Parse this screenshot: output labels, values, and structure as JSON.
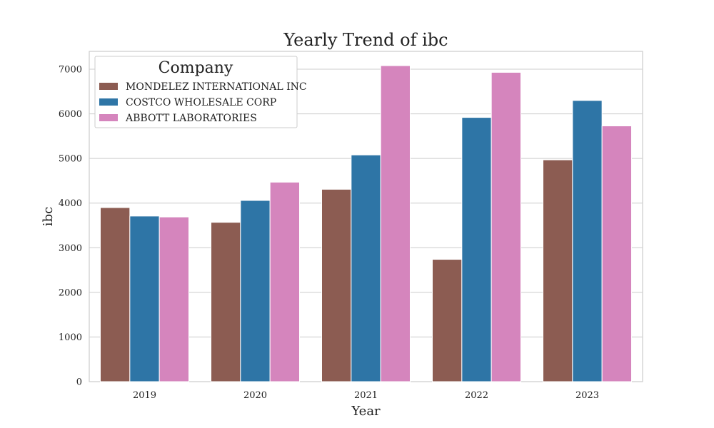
{
  "chart_data": {
    "type": "bar",
    "title": "Yearly Trend of ibc",
    "xlabel": "Year",
    "ylabel": "ibc",
    "categories": [
      "2019",
      "2020",
      "2021",
      "2022",
      "2023"
    ],
    "series": [
      {
        "name": "MONDELEZ INTERNATIONAL INC",
        "color": "#8c5c52",
        "values": [
          3900,
          3570,
          4310,
          2740,
          4970
        ]
      },
      {
        "name": "COSTCO WHOLESALE CORP",
        "color": "#2e75a6",
        "values": [
          3710,
          4060,
          5080,
          5920,
          6300
        ]
      },
      {
        "name": "ABBOTT LABORATORIES",
        "color": "#d585bd",
        "values": [
          3690,
          4470,
          7080,
          6930,
          5730
        ]
      }
    ],
    "ylim": [
      0,
      7400
    ],
    "yticks": [
      0,
      1000,
      2000,
      3000,
      4000,
      5000,
      6000,
      7000
    ],
    "grid": true,
    "legend": {
      "title": "Company",
      "placement": "top-left"
    }
  }
}
